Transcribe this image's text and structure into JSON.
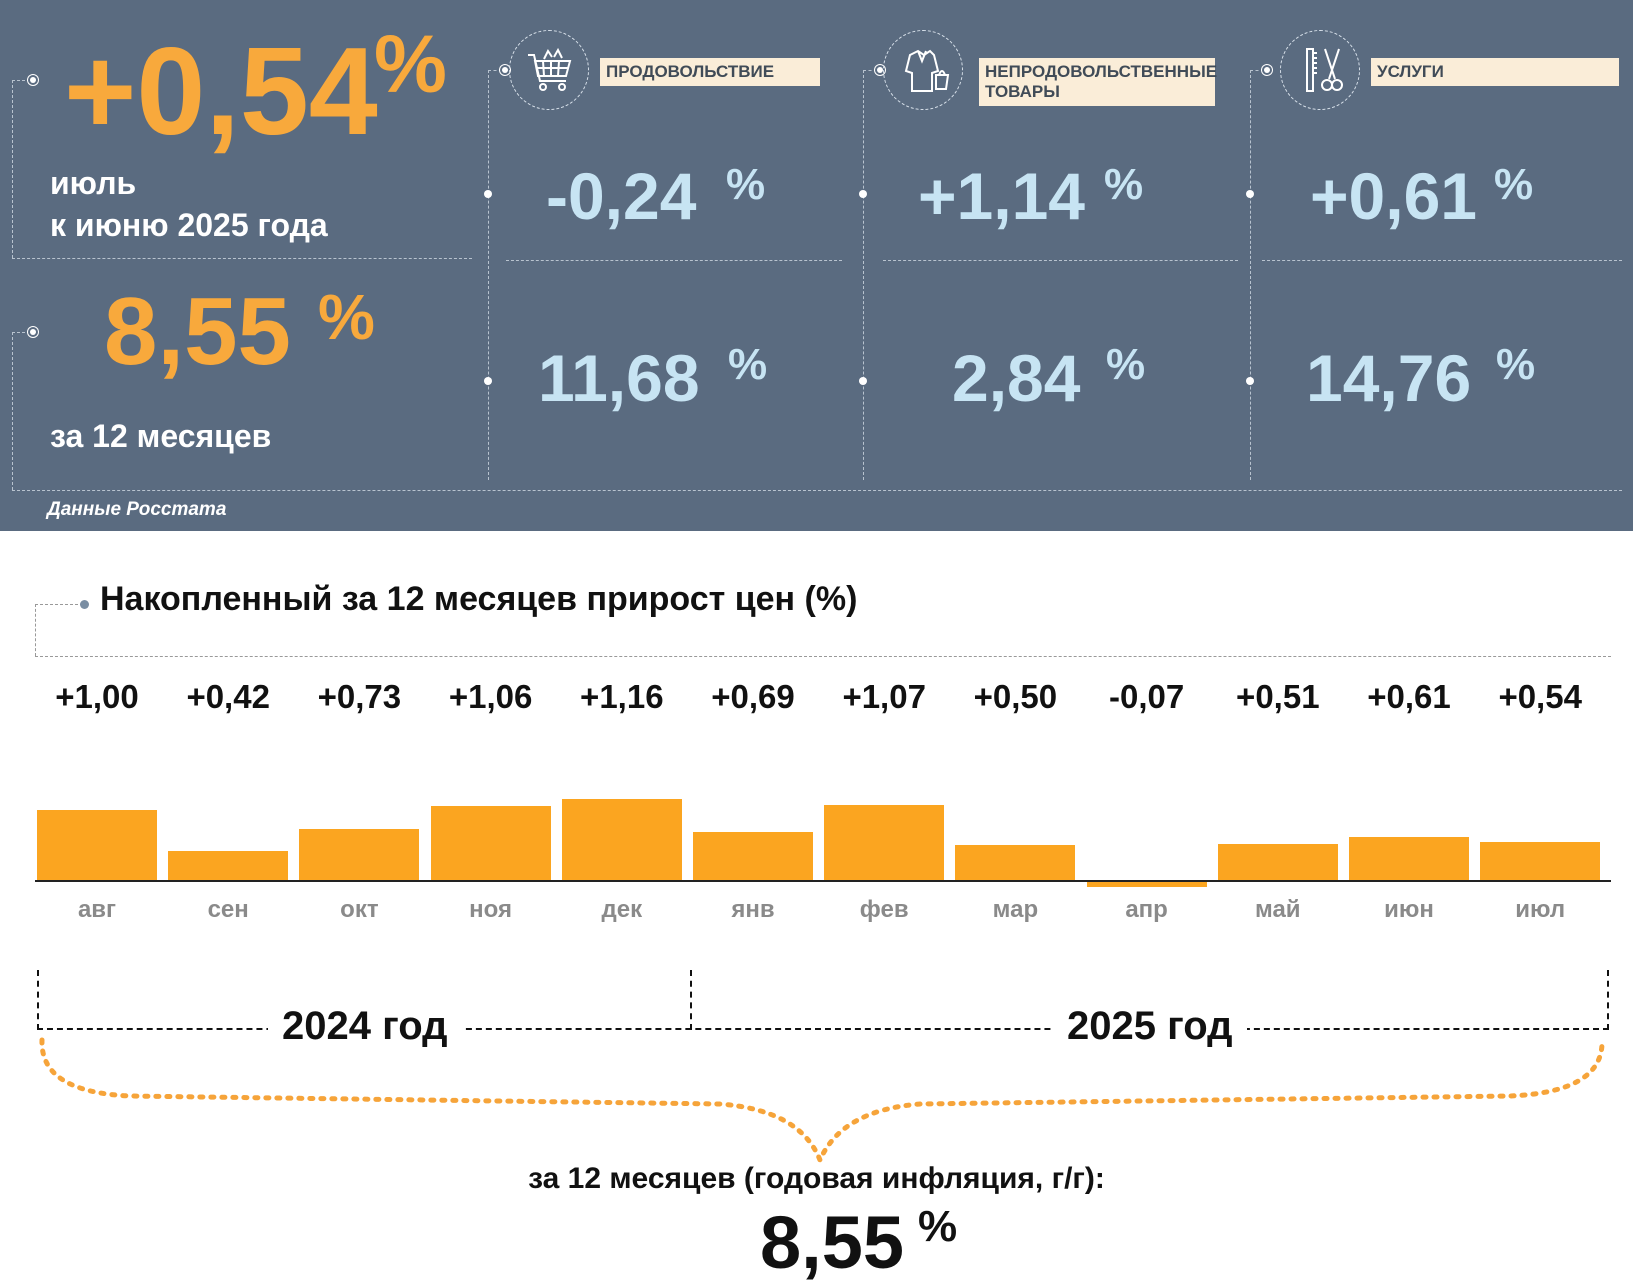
{
  "monthly": {
    "value": "+0,54",
    "pct": "%",
    "label_line1": "июль",
    "label_line2": "к июню 2025 года"
  },
  "annual": {
    "value": "8,55",
    "pct": "%",
    "label": "за 12 месяцев"
  },
  "categories": [
    {
      "label": "ПРОДОВОЛЬСТВИЕ",
      "icon": "shopping-cart-icon",
      "monthly": "-0,24",
      "annual": "11,68",
      "pct": "%"
    },
    {
      "label_line1": "НЕПРОДОВОЛЬСТВЕННЫЕ",
      "label_line2": "ТОВАРЫ",
      "icon": "clothing-icon",
      "monthly": "+1,14",
      "annual": "2,84",
      "pct": "%"
    },
    {
      "label": "УСЛУГИ",
      "icon": "comb-scissors-icon",
      "monthly": "+0,61",
      "annual": "14,76",
      "pct": "%"
    }
  ],
  "source": "Данные Росстата",
  "colors": {
    "panel": "#5a6b80",
    "orange": "#f8a93c",
    "light_blue": "#c7e4f3",
    "bar": "#fba520"
  },
  "chart_data": {
    "type": "bar",
    "title": "Накопленный за 12 месяцев прирост цен (%)",
    "categories": [
      "авг",
      "сен",
      "окт",
      "ноя",
      "дек",
      "янв",
      "фев",
      "мар",
      "апр",
      "май",
      "июн",
      "июл"
    ],
    "values": [
      1.0,
      0.42,
      0.73,
      1.06,
      1.16,
      0.69,
      1.07,
      0.5,
      -0.07,
      0.51,
      0.61,
      0.54
    ],
    "value_labels": [
      "+1,00",
      "+0,42",
      "+0,73",
      "+1,06",
      "+1,16",
      "+0,69",
      "+1,07",
      "+0,50",
      "-0,07",
      "+0,51",
      "+0,61",
      "+0,54"
    ],
    "years": [
      "2024 год",
      "2025 год"
    ],
    "grid": false,
    "summary_caption": "за 12 месяцев (годовая инфляция, г/г):",
    "summary_value": "8,55",
    "summary_pct": "%"
  }
}
